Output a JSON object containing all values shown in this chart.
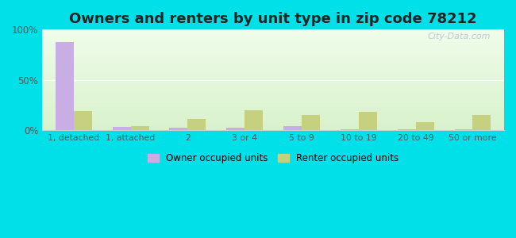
{
  "title": "Owners and renters by unit type in zip code 78212",
  "categories": [
    "1, detached",
    "1, attached",
    "2",
    "3 or 4",
    "5 to 9",
    "10 to 19",
    "20 to 49",
    "50 or more"
  ],
  "owner_values": [
    88,
    3,
    2,
    2,
    4,
    1,
    1,
    1
  ],
  "renter_values": [
    19,
    4,
    11,
    20,
    15,
    18,
    8,
    15
  ],
  "owner_color": "#c9aee5",
  "renter_color": "#c5d17f",
  "background_outer": "#00e0e8",
  "title_fontsize": 13,
  "legend_owner": "Owner occupied units",
  "legend_renter": "Renter occupied units",
  "ylim": [
    0,
    100
  ],
  "yticks": [
    0,
    50,
    100
  ],
  "ytick_labels": [
    "0%",
    "50%",
    "100%"
  ],
  "bar_width": 0.32,
  "watermark": "City-Data.com"
}
